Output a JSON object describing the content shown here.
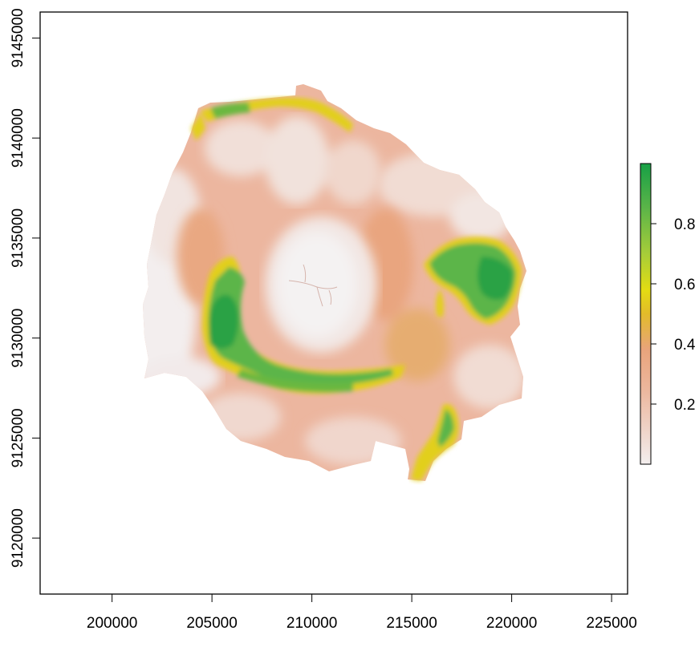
{
  "map": {
    "type": "raster",
    "x_axis": {
      "range": [
        196400,
        225800
      ],
      "ticks": [
        {
          "value": 200000,
          "label": "200000"
        },
        {
          "value": 205000,
          "label": "205000"
        },
        {
          "value": 210000,
          "label": "210000"
        },
        {
          "value": 215000,
          "label": "215000"
        },
        {
          "value": 220000,
          "label": "220000"
        },
        {
          "value": 225000,
          "label": "225000"
        }
      ]
    },
    "y_axis": {
      "range": [
        9117200,
        9146300
      ],
      "ticks": [
        {
          "value": 9120000,
          "label": "9120000"
        },
        {
          "value": 9125000,
          "label": "9125000"
        },
        {
          "value": 9130000,
          "label": "9130000"
        },
        {
          "value": 9135000,
          "label": "9135000"
        },
        {
          "value": 9140000,
          "label": "9140000"
        },
        {
          "value": 9145000,
          "label": "9145000"
        }
      ]
    },
    "legend": {
      "placement": "right",
      "range": [
        0,
        1
      ],
      "ticks": [
        {
          "value": 0.2,
          "label": "0.2"
        },
        {
          "value": 0.4,
          "label": "0.4"
        },
        {
          "value": 0.6,
          "label": "0.6"
        },
        {
          "value": 0.8,
          "label": "0.8"
        }
      ],
      "colors": [
        "#f2f2f2",
        "#efc9b8",
        "#e8a07c",
        "#e8c032",
        "#e0e000",
        "#8dc63f",
        "#55b049",
        "#1a9f46"
      ]
    },
    "palette": {
      "low": "#f2f2f2",
      "pink": "#efc9b8",
      "salmon": "#e8a07c",
      "orange": "#e0a93a",
      "yellow": "#e2d41a",
      "yellowgreen": "#a8cd3a",
      "green": "#5cb548",
      "darkgreen": "#2aa245"
    }
  }
}
